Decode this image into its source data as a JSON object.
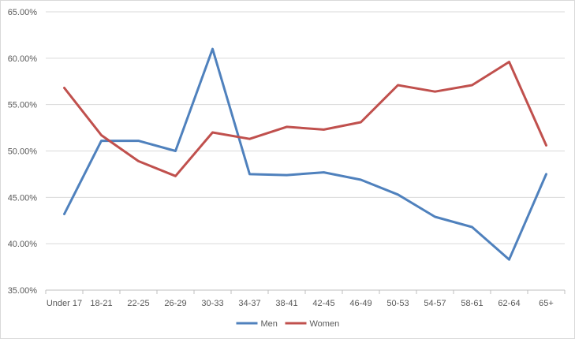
{
  "chart_data": {
    "type": "line",
    "categories": [
      "Under 17",
      "18-21",
      "22-25",
      "26-29",
      "30-33",
      "34-37",
      "38-41",
      "42-45",
      "46-49",
      "50-53",
      "54-57",
      "58-61",
      "62-64",
      "65+"
    ],
    "series": [
      {
        "name": "Men",
        "color": "#4f81bd",
        "values": [
          43.2,
          51.1,
          51.1,
          50.0,
          61.0,
          47.5,
          47.4,
          47.7,
          46.9,
          45.3,
          42.9,
          41.8,
          38.3,
          47.5
        ]
      },
      {
        "name": "Women",
        "color": "#c0504d",
        "values": [
          56.8,
          51.7,
          48.9,
          47.3,
          52.0,
          51.3,
          52.6,
          52.3,
          53.1,
          57.1,
          56.4,
          57.1,
          59.6,
          50.6
        ]
      }
    ],
    "yaxis": {
      "min": 35,
      "max": 65,
      "step": 5,
      "tick_labels": [
        "35.00%",
        "40.00%",
        "45.00%",
        "50.00%",
        "55.00%",
        "60.00%",
        "65.00%"
      ]
    },
    "grid": true,
    "legend_position": "bottom"
  }
}
